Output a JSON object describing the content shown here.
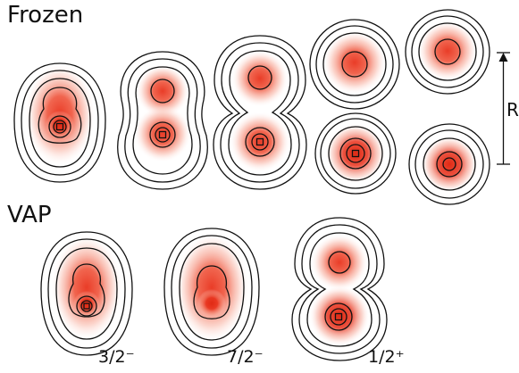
{
  "sections": {
    "frozen": "Frozen",
    "vap": "VAP"
  },
  "distance_label": "R",
  "states": [
    "3/2⁻",
    "7/2⁻",
    "1/2⁺"
  ],
  "colors": {
    "density": "#e8321c",
    "contour": "#111111",
    "background": "#ffffff"
  }
}
